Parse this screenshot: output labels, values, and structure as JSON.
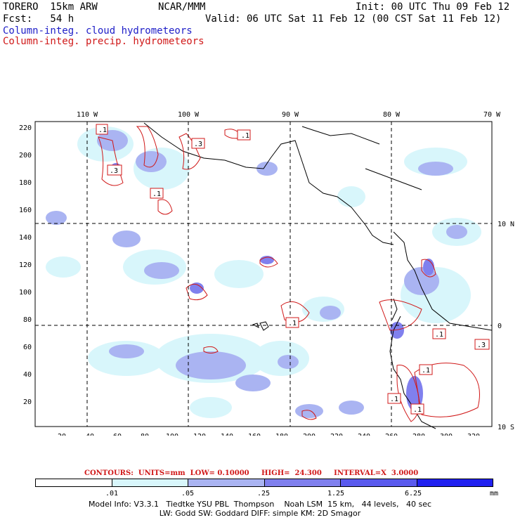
{
  "header": {
    "model": "TORERO  15km ARW",
    "center": "NCAR/MMM",
    "init": "Init: 00 UTC Thu 09 Feb 12",
    "fcst": "Fcst:   54 h",
    "valid": "Valid: 06 UTC Sat 11 Feb 12 (00 CST Sat 11 Feb 12)",
    "field1": "Column-integ. cloud hydrometeors",
    "field2": "Column-integ. precip. hydrometeors"
  },
  "axes": {
    "x_ticks": [
      "20",
      "40",
      "60",
      "80",
      "100",
      "120",
      "140",
      "160",
      "180",
      "200",
      "220",
      "240",
      "260",
      "280",
      "300",
      "320"
    ],
    "y_ticks": [
      "20",
      "40",
      "60",
      "80",
      "100",
      "120",
      "140",
      "160",
      "180",
      "200",
      "220"
    ],
    "lon_labels": [
      "110 W",
      "100 W",
      "90 W",
      "80 W",
      "70 W"
    ],
    "lat_labels": [
      "10 N",
      "0",
      "10 S"
    ]
  },
  "contour_labels": [
    ".1",
    ".1",
    ".3",
    ".3",
    ".1",
    ".1",
    ".1",
    ".1",
    ".3",
    ".1",
    ".1"
  ],
  "contours": {
    "text": "CONTOURS:  UNITS=mm  LOW= 0.10000     HIGH=  24.300     INTERVAL=X  3.0000"
  },
  "legend": {
    "colors": [
      "#ffffff",
      "#d8f6fb",
      "#aab4f2",
      "#8080ee",
      "#5a5aee",
      "#2020f0"
    ],
    "labels": [
      ".01",
      ".05",
      ".25",
      "1.25",
      "6.25"
    ],
    "units": "mm"
  },
  "footer": {
    "line1": "Model Info: V3.3.1   Tiedtke YSU PBL  Thompson    Noah LSM  15 km,   44 levels,   40 sec",
    "line2": "LW: Godd SW: Goddard DIFF: simple KM: 2D Smagor"
  }
}
